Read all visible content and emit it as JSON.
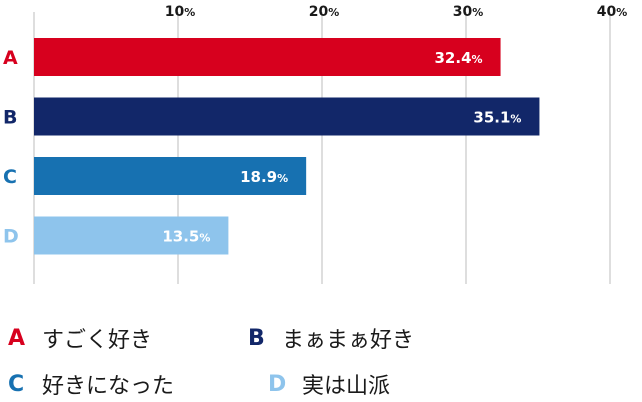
{
  "chart_data": {
    "type": "bar",
    "orientation": "horizontal",
    "categories": [
      "A",
      "B",
      "C",
      "D"
    ],
    "values": [
      32.4,
      35.1,
      18.9,
      13.5
    ],
    "value_labels": [
      "32.4",
      "35.1",
      "18.9",
      "13.5"
    ],
    "unit": "%",
    "xlim": [
      0,
      40
    ],
    "xticks": [
      {
        "value": 10,
        "label": "10"
      },
      {
        "value": 20,
        "label": "20"
      },
      {
        "value": 30,
        "label": "30"
      },
      {
        "value": 40,
        "label": "40"
      }
    ],
    "colors": [
      "#d7001e",
      "#122769",
      "#1771b1",
      "#8ec4ec"
    ],
    "grid": true,
    "legend": [
      {
        "key": "A",
        "text": "すごく好き"
      },
      {
        "key": "B",
        "text": "まぁまぁ好き"
      },
      {
        "key": "C",
        "text": "好きになった"
      },
      {
        "key": "D",
        "text": "実は山派"
      }
    ]
  }
}
